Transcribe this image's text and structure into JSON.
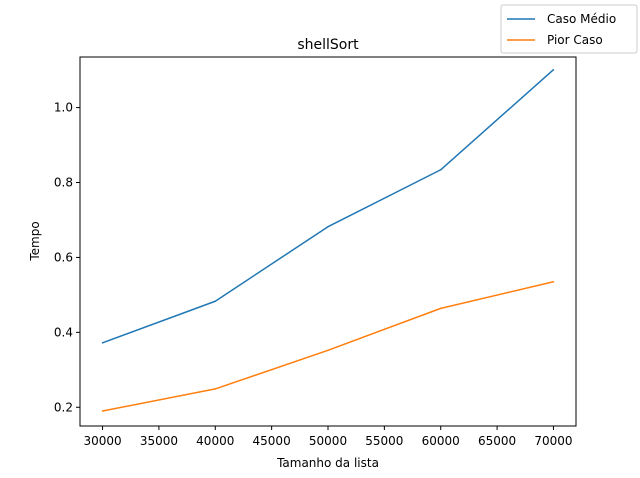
{
  "chart_data": {
    "type": "line",
    "title": "shellSort",
    "xlabel": "Tamanho da lista",
    "ylabel": "Tempo",
    "x": [
      30000,
      40000,
      50000,
      60000,
      70000
    ],
    "xlim": [
      28000,
      72000
    ],
    "ylim": [
      0.15,
      1.135
    ],
    "xticks": [
      30000,
      35000,
      40000,
      45000,
      50000,
      55000,
      60000,
      65000,
      70000
    ],
    "yticks": [
      0.2,
      0.4,
      0.6,
      0.8,
      1.0
    ],
    "ytick_labels": [
      "0.2",
      "0.4",
      "0.6",
      "0.8",
      "1.0"
    ],
    "grid": false,
    "legend_position": "top-right",
    "series": [
      {
        "name": "Caso Médio",
        "color": "#1f77b4",
        "values": [
          0.372,
          0.483,
          0.682,
          0.834,
          1.101
        ]
      },
      {
        "name": "Pior Caso",
        "color": "#ff7f0e",
        "values": [
          0.19,
          0.249,
          0.352,
          0.464,
          0.535
        ]
      }
    ]
  }
}
